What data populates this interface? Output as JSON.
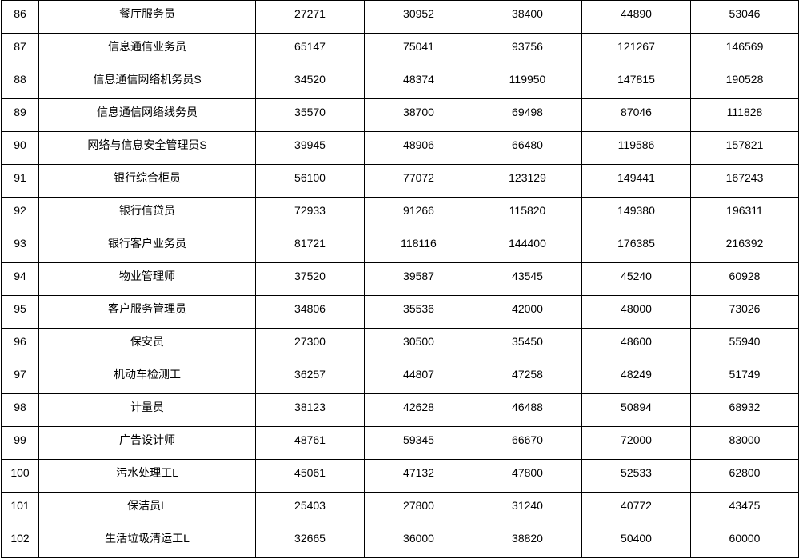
{
  "table": {
    "rows": [
      {
        "no": "86",
        "occupation": "餐厅服务员",
        "values": [
          "27271",
          "30952",
          "38400",
          "44890",
          "53046"
        ]
      },
      {
        "no": "87",
        "occupation": "信息通信业务员",
        "values": [
          "65147",
          "75041",
          "93756",
          "121267",
          "146569"
        ]
      },
      {
        "no": "88",
        "occupation": "信息通信网络机务员S",
        "values": [
          "34520",
          "48374",
          "119950",
          "147815",
          "190528"
        ]
      },
      {
        "no": "89",
        "occupation": "信息通信网络线务员",
        "values": [
          "35570",
          "38700",
          "69498",
          "87046",
          "111828"
        ]
      },
      {
        "no": "90",
        "occupation": "网络与信息安全管理员S",
        "values": [
          "39945",
          "48906",
          "66480",
          "119586",
          "157821"
        ]
      },
      {
        "no": "91",
        "occupation": "银行综合柜员",
        "values": [
          "56100",
          "77072",
          "123129",
          "149441",
          "167243"
        ]
      },
      {
        "no": "92",
        "occupation": "银行信贷员",
        "values": [
          "72933",
          "91266",
          "115820",
          "149380",
          "196311"
        ]
      },
      {
        "no": "93",
        "occupation": "银行客户业务员",
        "values": [
          "81721",
          "118116",
          "144400",
          "176385",
          "216392"
        ]
      },
      {
        "no": "94",
        "occupation": "物业管理师",
        "values": [
          "37520",
          "39587",
          "43545",
          "45240",
          "60928"
        ]
      },
      {
        "no": "95",
        "occupation": "客户服务管理员",
        "values": [
          "34806",
          "35536",
          "42000",
          "48000",
          "73026"
        ]
      },
      {
        "no": "96",
        "occupation": "保安员",
        "values": [
          "27300",
          "30500",
          "35450",
          "48600",
          "55940"
        ]
      },
      {
        "no": "97",
        "occupation": "机动车检测工",
        "values": [
          "36257",
          "44807",
          "47258",
          "48249",
          "51749"
        ]
      },
      {
        "no": "98",
        "occupation": "计量员",
        "values": [
          "38123",
          "42628",
          "46488",
          "50894",
          "68932"
        ]
      },
      {
        "no": "99",
        "occupation": "广告设计师",
        "values": [
          "48761",
          "59345",
          "66670",
          "72000",
          "83000"
        ]
      },
      {
        "no": "100",
        "occupation": "污水处理工L",
        "values": [
          "45061",
          "47132",
          "47800",
          "52533",
          "62800"
        ]
      },
      {
        "no": "101",
        "occupation": "保洁员L",
        "values": [
          "25403",
          "27800",
          "31240",
          "40772",
          "43475"
        ]
      },
      {
        "no": "102",
        "occupation": "生活垃圾清运工L",
        "values": [
          "32665",
          "36000",
          "38820",
          "50400",
          "60000"
        ]
      }
    ]
  }
}
